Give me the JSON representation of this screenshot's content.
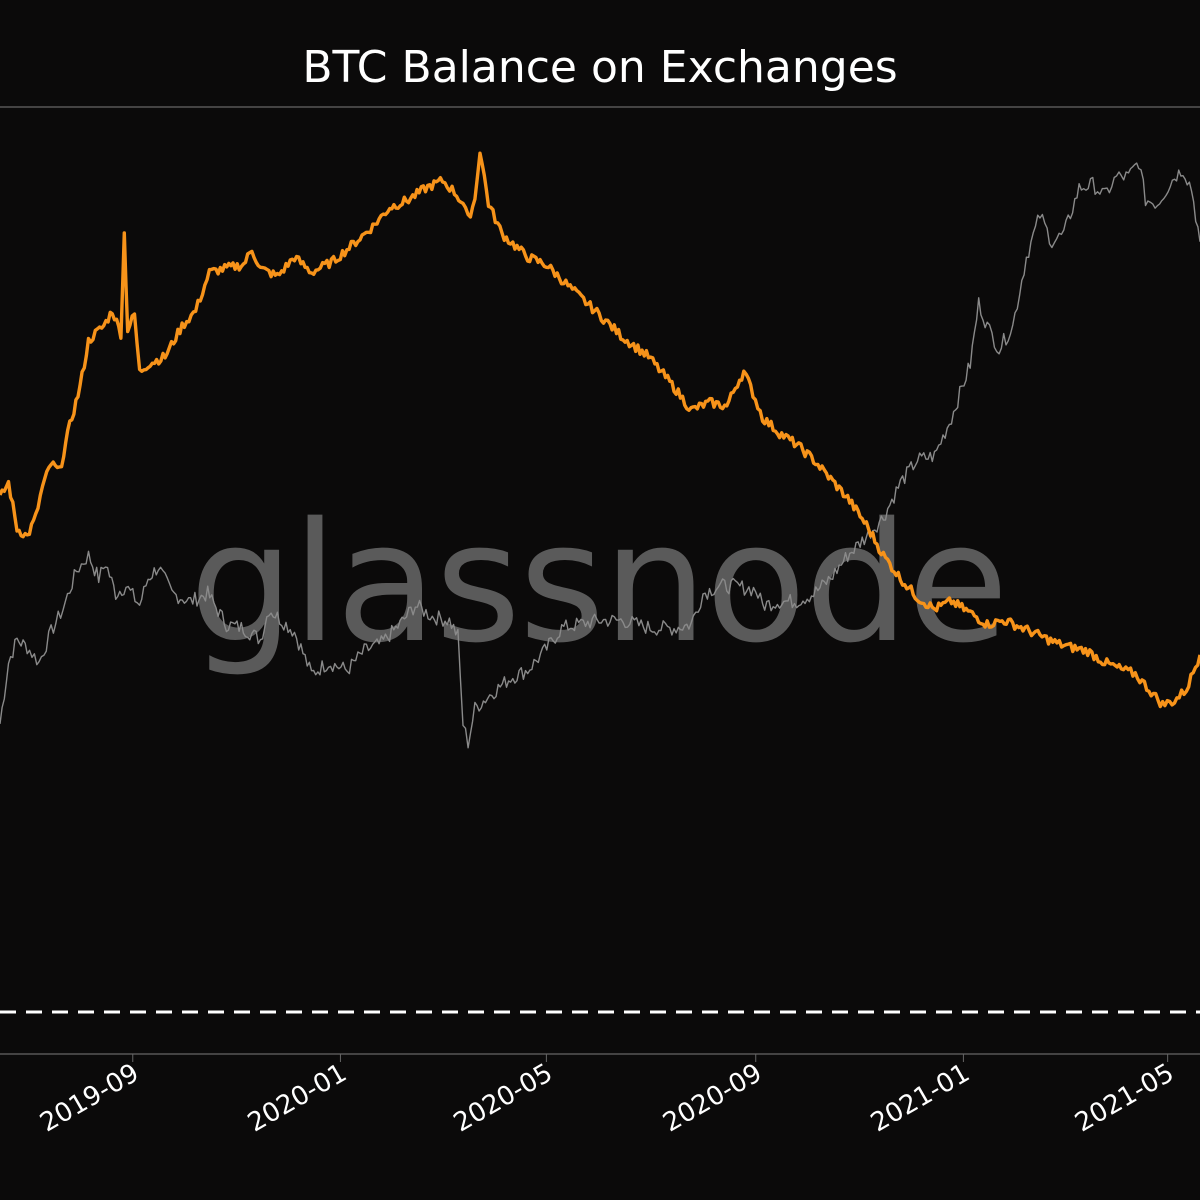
{
  "chart_data": {
    "type": "line",
    "title": "BTC Balance on Exchanges",
    "xlabel": "",
    "ylabel": "",
    "x_range": [
      "2019-06-15",
      "2021-05-20"
    ],
    "x_ticks": [
      "2019-09",
      "2020-01",
      "2020-05",
      "2020-09",
      "2021-01",
      "2021-05"
    ],
    "grid": false,
    "legend": "none",
    "watermark": "glassnode",
    "reference_line": {
      "style": "dashed",
      "color": "#ffffff"
    },
    "series": [
      {
        "color": "#f7931a",
        "points": [
          [
            "2019-06-15",
            0.545
          ],
          [
            "2019-06-20",
            0.565
          ],
          [
            "2019-06-25",
            0.505
          ],
          [
            "2019-07-01",
            0.495
          ],
          [
            "2019-07-06",
            0.52
          ],
          [
            "2019-07-10",
            0.56
          ],
          [
            "2019-07-15",
            0.59
          ],
          [
            "2019-07-20",
            0.58
          ],
          [
            "2019-07-26",
            0.64
          ],
          [
            "2019-08-01",
            0.69
          ],
          [
            "2019-08-06",
            0.75
          ],
          [
            "2019-08-10",
            0.76
          ],
          [
            "2019-08-15",
            0.77
          ],
          [
            "2019-08-20",
            0.79
          ],
          [
            "2019-08-25",
            0.76
          ],
          [
            "2019-08-27",
            0.89
          ],
          [
            "2019-08-29",
            0.765
          ],
          [
            "2019-09-02",
            0.785
          ],
          [
            "2019-09-05",
            0.71
          ],
          [
            "2019-09-10",
            0.72
          ],
          [
            "2019-09-20",
            0.73
          ],
          [
            "2019-09-30",
            0.77
          ],
          [
            "2019-10-08",
            0.79
          ],
          [
            "2019-10-16",
            0.84
          ],
          [
            "2019-10-25",
            0.845
          ],
          [
            "2019-11-05",
            0.85
          ],
          [
            "2019-11-10",
            0.87
          ],
          [
            "2019-11-15",
            0.845
          ],
          [
            "2019-11-25",
            0.835
          ],
          [
            "2019-12-05",
            0.86
          ],
          [
            "2019-12-15",
            0.84
          ],
          [
            "2019-12-28",
            0.855
          ],
          [
            "2020-01-10",
            0.88
          ],
          [
            "2020-01-20",
            0.9
          ],
          [
            "2020-01-30",
            0.925
          ],
          [
            "2020-02-10",
            0.935
          ],
          [
            "2020-02-20",
            0.95
          ],
          [
            "2020-03-01",
            0.96
          ],
          [
            "2020-03-08",
            0.945
          ],
          [
            "2020-03-13",
            0.93
          ],
          [
            "2020-03-16",
            0.91
          ],
          [
            "2020-03-20",
            0.935
          ],
          [
            "2020-03-23",
            1.0
          ],
          [
            "2020-03-28",
            0.93
          ],
          [
            "2020-04-05",
            0.89
          ],
          [
            "2020-04-20",
            0.86
          ],
          [
            "2020-05-01",
            0.85
          ],
          [
            "2020-05-15",
            0.82
          ],
          [
            "2020-06-01",
            0.785
          ],
          [
            "2020-06-15",
            0.755
          ],
          [
            "2020-06-30",
            0.73
          ],
          [
            "2020-07-15",
            0.69
          ],
          [
            "2020-07-25",
            0.66
          ],
          [
            "2020-08-05",
            0.67
          ],
          [
            "2020-08-15",
            0.665
          ],
          [
            "2020-08-20",
            0.69
          ],
          [
            "2020-08-25",
            0.71
          ],
          [
            "2020-08-29",
            0.69
          ],
          [
            "2020-09-05",
            0.65
          ],
          [
            "2020-09-15",
            0.63
          ],
          [
            "2020-09-25",
            0.615
          ],
          [
            "2020-10-05",
            0.595
          ],
          [
            "2020-10-15",
            0.57
          ],
          [
            "2020-10-25",
            0.545
          ],
          [
            "2020-11-05",
            0.51
          ],
          [
            "2020-11-15",
            0.47
          ],
          [
            "2020-11-25",
            0.44
          ],
          [
            "2020-12-05",
            0.415
          ],
          [
            "2020-12-15",
            0.4
          ],
          [
            "2020-12-25",
            0.41
          ],
          [
            "2021-01-05",
            0.395
          ],
          [
            "2021-01-15",
            0.38
          ],
          [
            "2021-01-25",
            0.385
          ],
          [
            "2021-02-05",
            0.375
          ],
          [
            "2021-02-15",
            0.365
          ],
          [
            "2021-02-25",
            0.355
          ],
          [
            "2021-03-05",
            0.35
          ],
          [
            "2021-03-15",
            0.345
          ],
          [
            "2021-03-25",
            0.33
          ],
          [
            "2021-04-05",
            0.32
          ],
          [
            "2021-04-12",
            0.315
          ],
          [
            "2021-04-20",
            0.295
          ],
          [
            "2021-04-28",
            0.275
          ],
          [
            "2021-05-05",
            0.28
          ],
          [
            "2021-05-12",
            0.295
          ],
          [
            "2021-05-20",
            0.34
          ]
        ]
      },
      {
        "color": "#8a8a8a",
        "points": [
          [
            "2019-06-15",
            0.25
          ],
          [
            "2019-06-20",
            0.33
          ],
          [
            "2019-06-25",
            0.36
          ],
          [
            "2019-07-01",
            0.35
          ],
          [
            "2019-07-08",
            0.33
          ],
          [
            "2019-07-15",
            0.37
          ],
          [
            "2019-07-22",
            0.4
          ],
          [
            "2019-07-30",
            0.45
          ],
          [
            "2019-08-06",
            0.47
          ],
          [
            "2019-08-12",
            0.44
          ],
          [
            "2019-08-16",
            0.46
          ],
          [
            "2019-08-22",
            0.42
          ],
          [
            "2019-08-28",
            0.43
          ],
          [
            "2019-09-05",
            0.405
          ],
          [
            "2019-09-10",
            0.44
          ],
          [
            "2019-09-16",
            0.455
          ],
          [
            "2019-09-24",
            0.42
          ],
          [
            "2019-10-05",
            0.41
          ],
          [
            "2019-10-15",
            0.42
          ],
          [
            "2019-10-26",
            0.38
          ],
          [
            "2019-11-05",
            0.375
          ],
          [
            "2019-11-15",
            0.36
          ],
          [
            "2019-11-20",
            0.4
          ],
          [
            "2019-11-25",
            0.39
          ],
          [
            "2019-12-05",
            0.37
          ],
          [
            "2019-12-15",
            0.315
          ],
          [
            "2019-12-25",
            0.33
          ],
          [
            "2020-01-05",
            0.32
          ],
          [
            "2020-01-15",
            0.345
          ],
          [
            "2020-01-25",
            0.355
          ],
          [
            "2020-02-05",
            0.38
          ],
          [
            "2020-02-14",
            0.405
          ],
          [
            "2020-02-24",
            0.39
          ],
          [
            "2020-03-05",
            0.385
          ],
          [
            "2020-03-10",
            0.365
          ],
          [
            "2020-03-13",
            0.25
          ],
          [
            "2020-03-16",
            0.225
          ],
          [
            "2020-03-20",
            0.27
          ],
          [
            "2020-03-30",
            0.29
          ],
          [
            "2020-04-10",
            0.31
          ],
          [
            "2020-04-20",
            0.32
          ],
          [
            "2020-04-30",
            0.345
          ],
          [
            "2020-05-10",
            0.375
          ],
          [
            "2020-05-20",
            0.38
          ],
          [
            "2020-06-01",
            0.385
          ],
          [
            "2020-06-15",
            0.385
          ],
          [
            "2020-07-01",
            0.375
          ],
          [
            "2020-07-15",
            0.375
          ],
          [
            "2020-07-25",
            0.38
          ],
          [
            "2020-08-01",
            0.42
          ],
          [
            "2020-08-10",
            0.43
          ],
          [
            "2020-08-20",
            0.43
          ],
          [
            "2020-09-01",
            0.425
          ],
          [
            "2020-09-05",
            0.405
          ],
          [
            "2020-09-15",
            0.41
          ],
          [
            "2020-09-25",
            0.41
          ],
          [
            "2020-10-05",
            0.42
          ],
          [
            "2020-10-15",
            0.44
          ],
          [
            "2020-10-25",
            0.47
          ],
          [
            "2020-11-05",
            0.495
          ],
          [
            "2020-11-15",
            0.52
          ],
          [
            "2020-11-25",
            0.565
          ],
          [
            "2020-12-05",
            0.595
          ],
          [
            "2020-12-15",
            0.6
          ],
          [
            "2020-12-25",
            0.65
          ],
          [
            "2021-01-05",
            0.72
          ],
          [
            "2021-01-10",
            0.8
          ],
          [
            "2021-01-15",
            0.77
          ],
          [
            "2021-01-22",
            0.74
          ],
          [
            "2021-01-30",
            0.77
          ],
          [
            "2021-02-07",
            0.86
          ],
          [
            "2021-02-15",
            0.915
          ],
          [
            "2021-02-22",
            0.88
          ],
          [
            "2021-03-01",
            0.89
          ],
          [
            "2021-03-10",
            0.95
          ],
          [
            "2021-03-18",
            0.955
          ],
          [
            "2021-03-25",
            0.94
          ],
          [
            "2021-04-01",
            0.965
          ],
          [
            "2021-04-08",
            0.965
          ],
          [
            "2021-04-14",
            0.985
          ],
          [
            "2021-04-18",
            0.935
          ],
          [
            "2021-04-25",
            0.93
          ],
          [
            "2021-05-05",
            0.965
          ],
          [
            "2021-05-10",
            0.975
          ],
          [
            "2021-05-15",
            0.95
          ],
          [
            "2021-05-20",
            0.88
          ]
        ]
      }
    ]
  },
  "watermark_text": "glassnode"
}
